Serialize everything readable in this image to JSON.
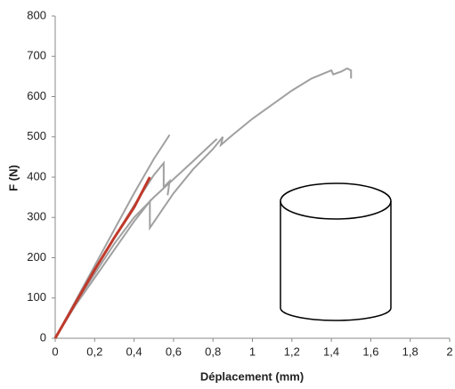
{
  "chart_data": {
    "type": "line",
    "x_label": "Déplacement (mm)",
    "y_label": "F (N)",
    "xlim": [
      0,
      2
    ],
    "ylim": [
      0,
      800
    ],
    "xticks": [
      0,
      {
        "value": 0.2,
        "label": "0,2"
      },
      {
        "value": 0.4,
        "label": "0,4"
      },
      {
        "value": 0.6,
        "label": "0,6"
      },
      {
        "value": 0.8,
        "label": "0,8"
      },
      1,
      {
        "value": 1.2,
        "label": "1,2"
      },
      {
        "value": 1.4,
        "label": "1,4"
      },
      {
        "value": 1.6,
        "label": "1,6"
      },
      {
        "value": 1.8,
        "label": "1,8"
      },
      2
    ],
    "yticks": [
      0,
      100,
      200,
      300,
      400,
      500,
      600,
      700,
      800
    ],
    "series": [
      {
        "color": "#a0a0a0",
        "x": [
          0,
          0.1,
          0.2,
          0.3,
          0.4,
          0.5,
          0.58
        ],
        "values": [
          0,
          90,
          180,
          270,
          360,
          445,
          505
        ]
      },
      {
        "color": "#a0a0a0",
        "x": [
          0,
          0.1,
          0.2,
          0.3,
          0.4,
          0.5,
          0.55,
          0.55,
          0.58,
          0.57
        ],
        "values": [
          0,
          85,
          170,
          250,
          330,
          405,
          435,
          375,
          390,
          355
        ]
      },
      {
        "color": "#a0a0a0",
        "x": [
          0,
          0.1,
          0.2,
          0.3,
          0.4,
          0.48,
          0.48,
          0.6,
          0.7,
          0.8,
          0.85,
          0.84,
          0.9,
          1.0,
          1.1,
          1.2,
          1.3,
          1.4,
          1.41,
          1.45,
          1.48,
          1.5,
          1.5
        ],
        "values": [
          0,
          80,
          150,
          220,
          290,
          340,
          274,
          360,
          420,
          470,
          500,
          480,
          505,
          545,
          580,
          615,
          645,
          665,
          655,
          662,
          670,
          665,
          645
        ]
      },
      {
        "color": "#a0a0a0",
        "x": [
          0,
          0.1,
          0.2,
          0.3,
          0.4,
          0.5,
          0.6,
          0.7,
          0.82
        ],
        "values": [
          0,
          85,
          160,
          235,
          300,
          350,
          395,
          440,
          495
        ]
      },
      {
        "color": "#c0392b",
        "x": [
          0,
          0.1,
          0.2,
          0.3,
          0.4,
          0.48
        ],
        "values": [
          0,
          85,
          170,
          250,
          325,
          400
        ]
      }
    ]
  }
}
